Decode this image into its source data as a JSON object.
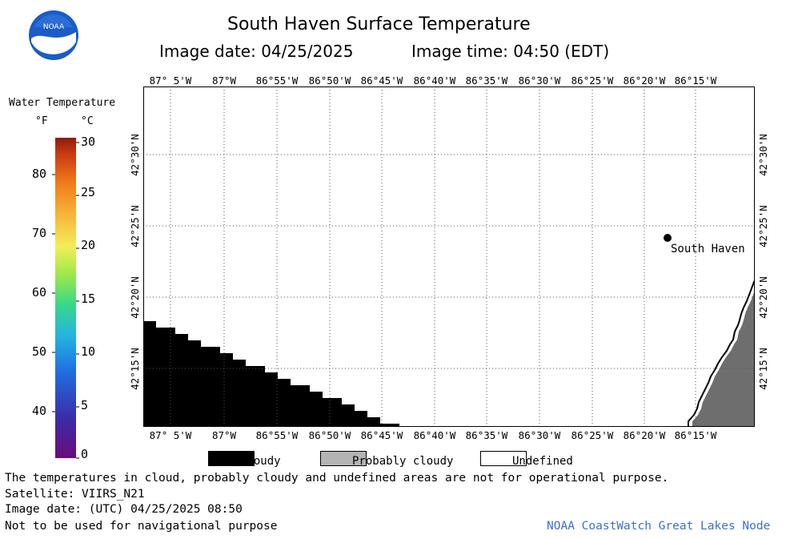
{
  "header": {
    "title": "South Haven Surface Temperature",
    "image_date_label": "Image date: 04/25/2025",
    "image_time_label": "Image time: 04:50 (EDT)",
    "logo_text": "NOAA"
  },
  "colorbar": {
    "title": "Water Temperature",
    "unit_f": "°F",
    "unit_c": "°C",
    "f_ticks": [
      "80",
      "70",
      "60",
      "50",
      "40"
    ],
    "c_ticks": [
      "30",
      "25",
      "20",
      "15",
      "10",
      "5",
      "0"
    ]
  },
  "map": {
    "lon_labels": [
      "87° 5'W",
      "87°W",
      "86°55'W",
      "86°50'W",
      "86°45'W",
      "86°40'W",
      "86°35'W",
      "86°30'W",
      "86°25'W",
      "86°20'W",
      "86°15'W"
    ],
    "lat_labels": [
      "42°30'N",
      "42°25'N",
      "42°20'N",
      "42°15'N"
    ],
    "city_label": "South Haven",
    "colors": {
      "land": "#6e6e6e",
      "cloud": "#000000",
      "water": "#ffffff"
    }
  },
  "legend": {
    "cloudy": "Cloudy",
    "probably_cloudy": "Probably cloudy",
    "undefined": "Undefined",
    "colors": {
      "cloudy": "#000000",
      "probably_cloudy": "#b4b4b4",
      "undefined": "#ffffff"
    }
  },
  "footer": {
    "disclaimer": "The temperatures in cloud, probably cloudy and undefined areas are not for operational purpose.",
    "satellite": "Satellite: VIIRS_N21",
    "utc_date": "Image date: (UTC) 04/25/2025  08:50",
    "nav_warning": "Not to be used for navigational purpose",
    "credit": "NOAA CoastWatch Great Lakes Node"
  }
}
